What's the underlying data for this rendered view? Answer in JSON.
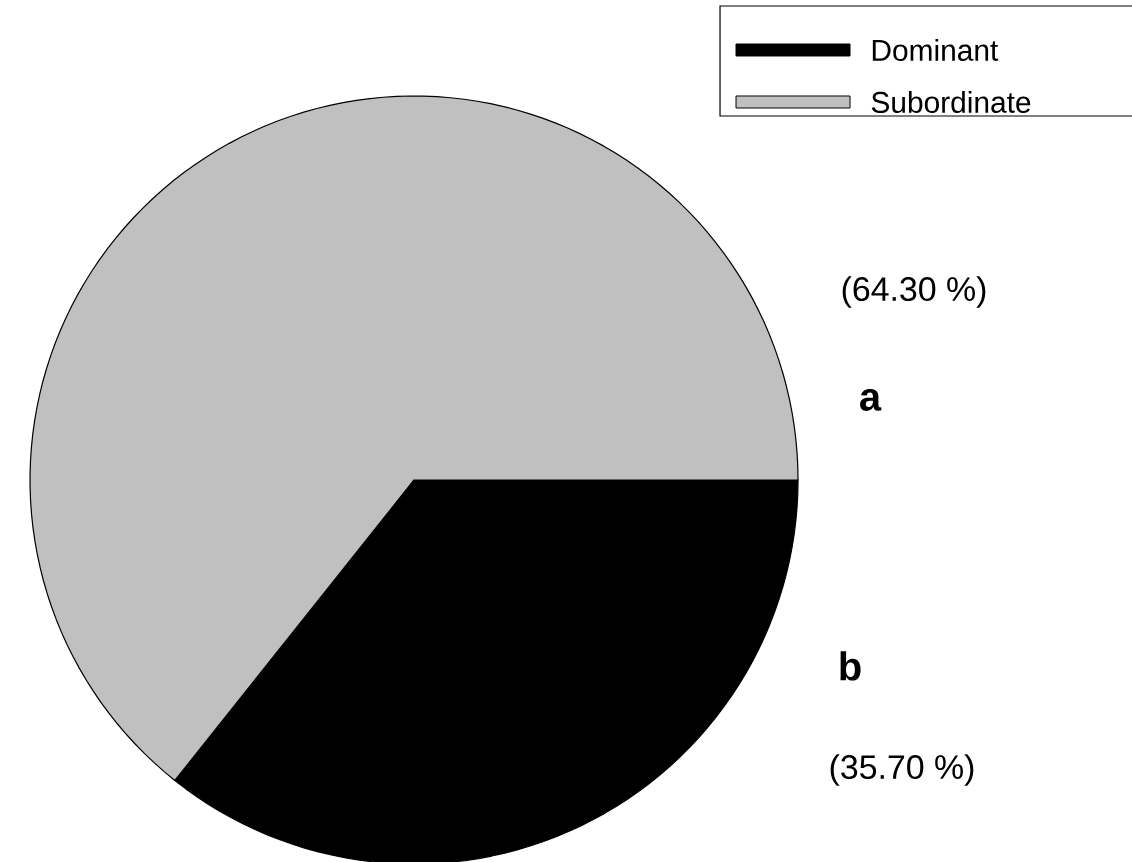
{
  "chart_data": {
    "type": "pie",
    "categories": [
      "Dominant",
      "Subordinate"
    ],
    "values": [
      35.7,
      64.3
    ],
    "colors": [
      "#000000",
      "#c0c0c0"
    ],
    "value_labels": [
      "(35.70 %)",
      "(64.30 %)"
    ],
    "annotations": [
      "b",
      "a"
    ],
    "legend": "top right"
  }
}
